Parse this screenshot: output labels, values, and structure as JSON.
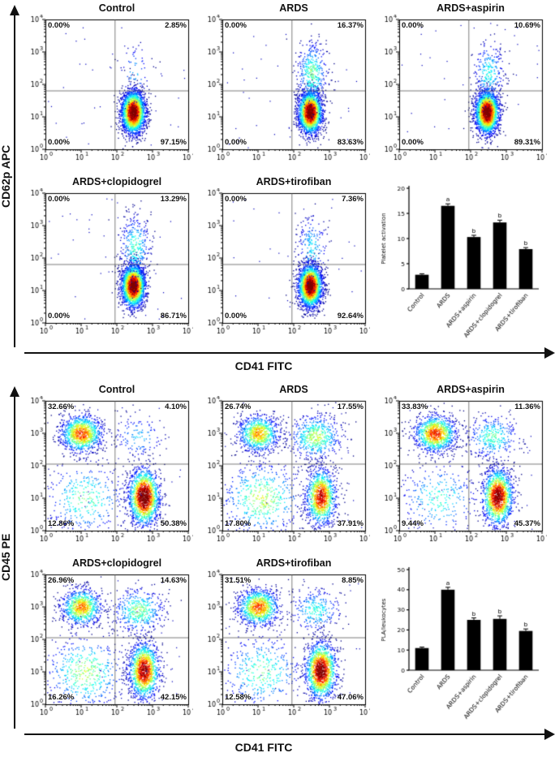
{
  "chart_data": [
    {
      "type": "scatter",
      "panel_name": "platelet-activation-flow-cytometry",
      "y_axis_label": "CD62p APC",
      "x_axis_label": "CD41 FITC",
      "axis_tick_exponents": [
        "0",
        "1",
        "2",
        "3",
        "4"
      ],
      "axis_range_log10": [
        0,
        4
      ],
      "layout": {
        "style": "single",
        "dividers": [
          1.95,
          1.8
        ],
        "grid": false
      },
      "flow_plots": [
        {
          "title": "Control",
          "tl": "0.00%",
          "tr": "2.85%",
          "bl": "0.00%",
          "br": "97.15%"
        },
        {
          "title": "ARDS",
          "tl": "0.00%",
          "tr": "16.37%",
          "bl": "0.00%",
          "br": "83.63%"
        },
        {
          "title": "ARDS+aspirin",
          "tl": "0.00%",
          "tr": "10.69%",
          "bl": "0.00%",
          "br": "89.31%"
        },
        {
          "title": "ARDS+clopidogrel",
          "tl": "0.00%",
          "tr": "13.29%",
          "bl": "0.00%",
          "br": "86.71%"
        },
        {
          "title": "ARDS+tirofiban",
          "tl": "0.00%",
          "tr": "7.36%",
          "bl": "0.00%",
          "br": "92.64%"
        }
      ],
      "bar_chart": {
        "type": "bar",
        "ylabel": "Platelet activation",
        "ylim": [
          0,
          20
        ],
        "yticks": [
          0,
          5,
          10,
          15,
          20
        ],
        "categories": [
          "Control",
          "ARDS",
          "ARDS+aspirin",
          "ARDS+clopidogrel",
          "ARDS+tirofiban"
        ],
        "values": [
          2.8,
          16.5,
          10.3,
          13.2,
          7.9
        ],
        "errors": [
          0.2,
          0.4,
          0.35,
          0.45,
          0.3
        ],
        "sig_labels": [
          "",
          "a",
          "b",
          "b",
          "b"
        ],
        "bar_color": "#000000"
      }
    },
    {
      "type": "scatter",
      "panel_name": "platelet-leukocyte-aggregates-flow-cytometry",
      "y_axis_label": "CD45 PE",
      "x_axis_label": "CD41 FITC",
      "axis_tick_exponents": [
        "0",
        "1",
        "2",
        "3",
        "4"
      ],
      "axis_range_log10": [
        0,
        4
      ],
      "layout": {
        "style": "quad",
        "dividers": [
          1.95,
          2.05
        ],
        "grid": false
      },
      "flow_plots": [
        {
          "title": "Control",
          "tl": "32.66%",
          "tr": "4.10%",
          "bl": "12.86%",
          "br": "50.38%"
        },
        {
          "title": "ARDS",
          "tl": "26.74%",
          "tr": "17.55%",
          "bl": "17.80%",
          "br": "37.91%"
        },
        {
          "title": "ARDS+aspirin",
          "tl": "33.83%",
          "tr": "11.36%",
          "bl": "9.44%",
          "br": "45.37%"
        },
        {
          "title": "ARDS+clopidogrel",
          "tl": "26.96%",
          "tr": "14.63%",
          "bl": "16.26%",
          "br": "42.15%"
        },
        {
          "title": "ARDS+tirofiban",
          "tl": "31.51%",
          "tr": "8.85%",
          "bl": "12.58%",
          "br": "47.06%"
        }
      ],
      "bar_chart": {
        "type": "bar",
        "ylabel": "PLA/leukocytes",
        "ylim": [
          0,
          50
        ],
        "yticks": [
          0,
          10,
          20,
          30,
          40,
          50
        ],
        "categories": [
          "Control",
          "ARDS",
          "ARDS+aspirin",
          "ARDS+clopidogrel",
          "ARDS+tirofiban"
        ],
        "values": [
          11,
          40,
          25,
          25.5,
          19.5
        ],
        "errors": [
          0.5,
          1.2,
          1.0,
          1.5,
          1.0
        ],
        "sig_labels": [
          "",
          "a",
          "b",
          "b",
          "b"
        ],
        "bar_color": "#000000"
      }
    }
  ]
}
